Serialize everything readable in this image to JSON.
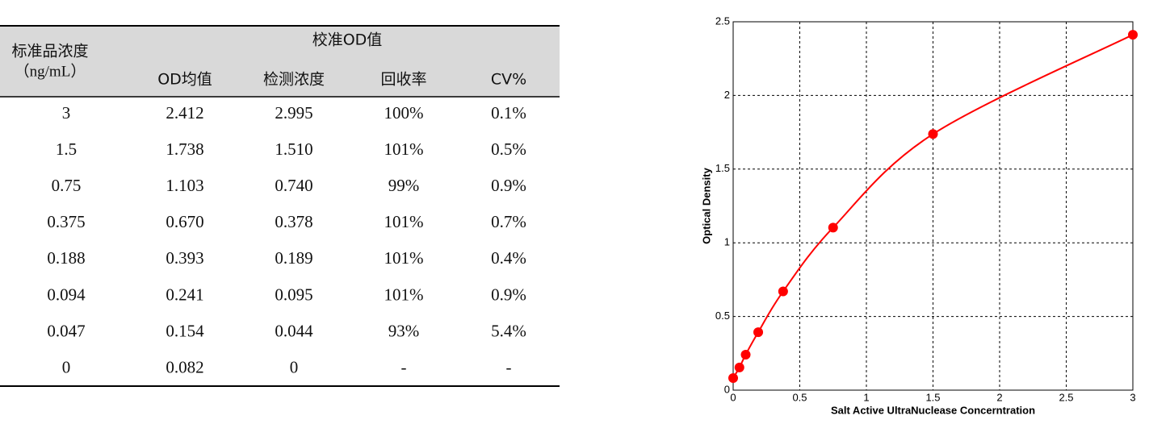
{
  "table": {
    "header": {
      "concentration": "标准品浓度",
      "unit": "（ng/mL）",
      "group": "校准OD值",
      "columns": [
        "OD均值",
        "检测浓度",
        "回收率",
        "CV%"
      ]
    },
    "rows": [
      [
        "3",
        "2.412",
        "2.995",
        "100%",
        "0.1%"
      ],
      [
        "1.5",
        "1.738",
        "1.510",
        "101%",
        "0.5%"
      ],
      [
        "0.75",
        "1.103",
        "0.740",
        "99%",
        "0.9%"
      ],
      [
        "0.375",
        "0.670",
        "0.378",
        "101%",
        "0.7%"
      ],
      [
        "0.188",
        "0.393",
        "0.189",
        "101%",
        "0.4%"
      ],
      [
        "0.094",
        "0.241",
        "0.095",
        "101%",
        "0.9%"
      ],
      [
        "0.047",
        "0.154",
        "0.044",
        "93%",
        "5.4%"
      ],
      [
        "0",
        "0.082",
        "0",
        "-",
        "-"
      ]
    ]
  },
  "chart_data": {
    "type": "scatter",
    "xlabel": "Salt Active UltraNuclease Concerntration",
    "ylabel": "Optical Density",
    "x": [
      3,
      1.5,
      0.75,
      0.375,
      0.188,
      0.094,
      0.047,
      0
    ],
    "values": [
      2.412,
      1.738,
      1.103,
      0.67,
      0.393,
      0.241,
      0.154,
      0.082
    ],
    "color": "#ff0000",
    "xlim": [
      0,
      3
    ],
    "ylim": [
      0,
      2.5
    ],
    "xticks": [
      0,
      0.5,
      1,
      1.5,
      2,
      2.5,
      3
    ],
    "yticks": [
      0,
      0.5,
      1,
      1.5,
      2,
      2.5
    ],
    "grid": true
  }
}
